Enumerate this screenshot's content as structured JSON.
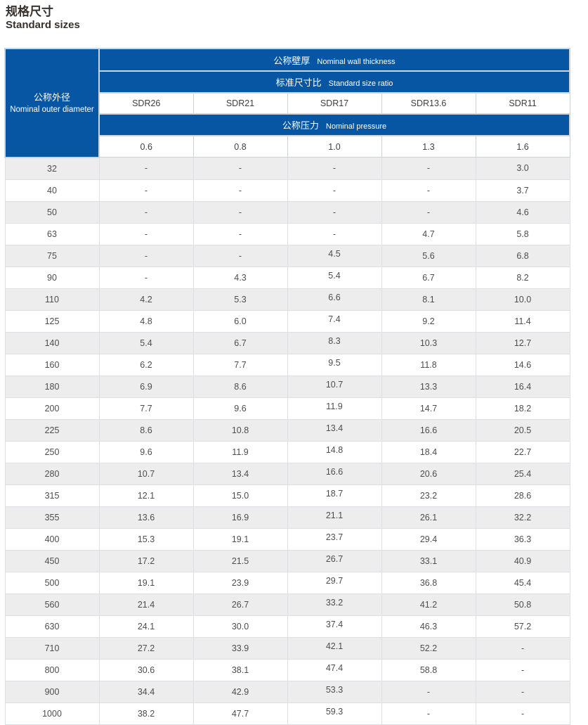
{
  "page": {
    "title_zh": "规格尺寸",
    "title_en": "Standard sizes"
  },
  "table": {
    "row_header": {
      "zh": "公称外径",
      "en": "Nominal outer diameter"
    },
    "band_wall_thickness": {
      "zh": "公称壁厚",
      "en": "Nominal wall thickness"
    },
    "band_size_ratio": {
      "zh": "标准尺寸比",
      "en": "Standard size ratio"
    },
    "band_pressure": {
      "zh": "公称压力",
      "en": "Nominal pressure"
    },
    "sdr_columns": [
      "SDR26",
      "SDR21",
      "SDR17",
      "SDR13.6",
      "SDR11"
    ],
    "pressure_values": [
      "0.6",
      "0.8",
      "1.0",
      "1.3",
      "1.6"
    ],
    "rows": [
      {
        "od": "32",
        "values": [
          "-",
          "-",
          "-",
          "-",
          "3.0"
        ]
      },
      {
        "od": "40",
        "values": [
          "-",
          "-",
          "-",
          "-",
          "3.7"
        ]
      },
      {
        "od": "50",
        "values": [
          "-",
          "-",
          "-",
          "-",
          "4.6"
        ]
      },
      {
        "od": "63",
        "values": [
          "-",
          "-",
          "-",
          "4.7",
          "5.8"
        ]
      },
      {
        "od": "75",
        "values": [
          "-",
          "-",
          "4.5",
          "5.6",
          "6.8"
        ]
      },
      {
        "od": "90",
        "values": [
          "-",
          "4.3",
          "5.4",
          "6.7",
          "8.2"
        ]
      },
      {
        "od": "110",
        "values": [
          "4.2",
          "5.3",
          "6.6",
          "8.1",
          "10.0"
        ]
      },
      {
        "od": "125",
        "values": [
          "4.8",
          "6.0",
          "7.4",
          "9.2",
          "11.4"
        ]
      },
      {
        "od": "140",
        "values": [
          "5.4",
          "6.7",
          "8.3",
          "10.3",
          "12.7"
        ]
      },
      {
        "od": "160",
        "values": [
          "6.2",
          "7.7",
          "9.5",
          "11.8",
          "14.6"
        ]
      },
      {
        "od": "180",
        "values": [
          "6.9",
          "8.6",
          "10.7",
          "13.3",
          "16.4"
        ]
      },
      {
        "od": "200",
        "values": [
          "7.7",
          "9.6",
          "11.9",
          "14.7",
          "18.2"
        ]
      },
      {
        "od": "225",
        "values": [
          "8.6",
          "10.8",
          "13.4",
          "16.6",
          "20.5"
        ]
      },
      {
        "od": "250",
        "values": [
          "9.6",
          "11.9",
          "14.8",
          "18.4",
          "22.7"
        ]
      },
      {
        "od": "280",
        "values": [
          "10.7",
          "13.4",
          "16.6",
          "20.6",
          "25.4"
        ]
      },
      {
        "od": "315",
        "values": [
          "12.1",
          "15.0",
          "18.7",
          "23.2",
          "28.6"
        ]
      },
      {
        "od": "355",
        "values": [
          "13.6",
          "16.9",
          "21.1",
          "26.1",
          "32.2"
        ]
      },
      {
        "od": "400",
        "values": [
          "15.3",
          "19.1",
          "23.7",
          "29.4",
          "36.3"
        ]
      },
      {
        "od": "450",
        "values": [
          "17.2",
          "21.5",
          "26.7",
          "33.1",
          "40.9"
        ]
      },
      {
        "od": "500",
        "values": [
          "19.1",
          "23.9",
          "29.7",
          "36.8",
          "45.4"
        ]
      },
      {
        "od": "560",
        "values": [
          "21.4",
          "26.7",
          "33.2",
          "41.2",
          "50.8"
        ]
      },
      {
        "od": "630",
        "values": [
          "24.1",
          "30.0",
          "37.4",
          "46.3",
          "57.2"
        ]
      },
      {
        "od": "710",
        "values": [
          "27.2",
          "33.9",
          "42.1",
          "52.2",
          "-"
        ]
      },
      {
        "od": "800",
        "values": [
          "30.6",
          "38.1",
          "47.4",
          "58.8",
          "-"
        ]
      },
      {
        "od": "900",
        "values": [
          "34.4",
          "42.9",
          "53.3",
          "-",
          "-"
        ]
      },
      {
        "od": "1000",
        "values": [
          "38.2",
          "47.7",
          "59.3",
          "-",
          "-"
        ]
      }
    ]
  },
  "colors": {
    "header_blue": "#0756a4",
    "zebra_gray": "#ededee",
    "cell_border": "#dcdfe3",
    "header_border": "#ccd6e0",
    "text_dark": "#4d4d4d",
    "title_color": "#38322e"
  }
}
